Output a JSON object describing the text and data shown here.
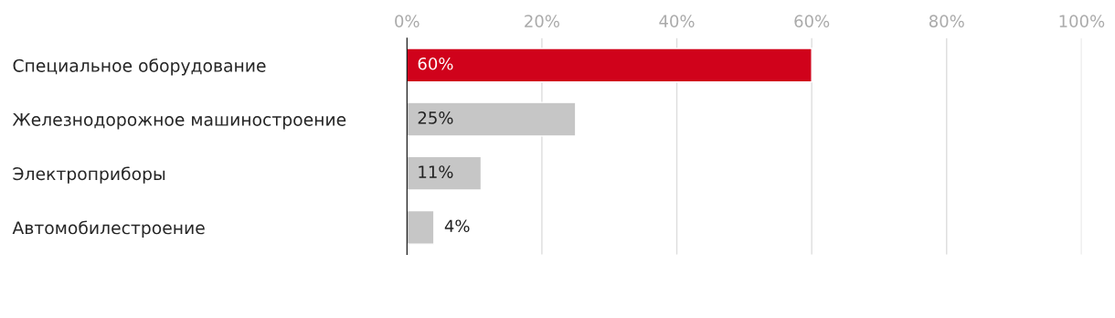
{
  "chart_data": {
    "type": "bar",
    "orientation": "horizontal",
    "categories": [
      "Специальное оборудование",
      "Железнодорожное машиностроение",
      "Электроприборы",
      "Автомобилестроение"
    ],
    "values": [
      60,
      25,
      11,
      4
    ],
    "colors": [
      "#d0021b",
      "#c6c6c6",
      "#c6c6c6",
      "#c6c6c6"
    ],
    "value_labels": [
      "60%",
      "25%",
      "11%",
      "4%"
    ],
    "xlim": [
      0,
      100
    ],
    "xticks": [
      {
        "value": 0,
        "label": "0%"
      },
      {
        "value": 20,
        "label": "20%"
      },
      {
        "value": 40,
        "label": "40%"
      },
      {
        "value": 60,
        "label": "60%"
      },
      {
        "value": 80,
        "label": "80%"
      },
      {
        "value": 100,
        "label": "100%"
      }
    ],
    "grid": "x",
    "legend": false
  }
}
